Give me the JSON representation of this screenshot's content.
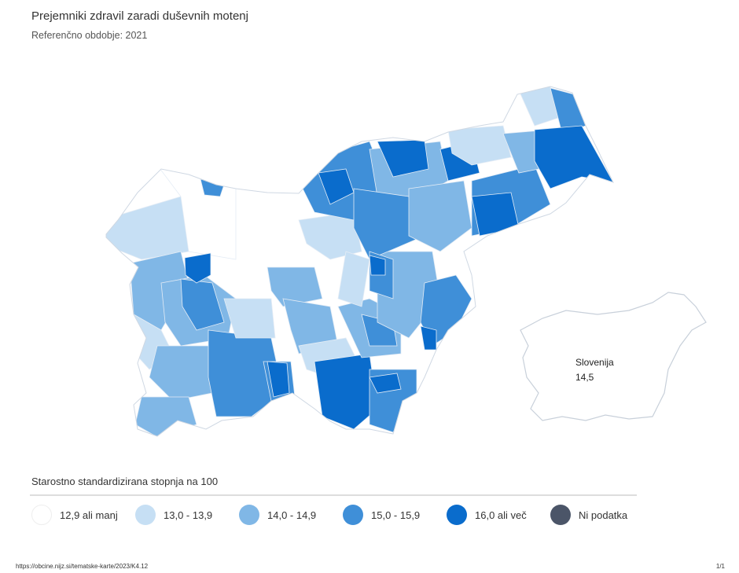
{
  "header": {
    "title": "Prejemniki zdravil zaradi duševnih motenj",
    "subtitle": "Referenčno obdobje: 2021"
  },
  "inset": {
    "name": "Slovenija",
    "value": "14,5"
  },
  "legend": {
    "title": "Starostno standardizirana stopnja na 100",
    "items": [
      {
        "label": "12,9 ali manj",
        "color": "#ffffff"
      },
      {
        "label": "13,0 - 13,9",
        "color": "#c6dff4"
      },
      {
        "label": "14,0 - 14,9",
        "color": "#80b7e6"
      },
      {
        "label": "15,0 - 15,9",
        "color": "#3f8fd8"
      },
      {
        "label": "16,0 ali več",
        "color": "#0a6ccc"
      },
      {
        "label": "Ni podatka",
        "color": "#4b5568"
      }
    ]
  },
  "footer": {
    "url": "https://obcine.nijz.si/tematske-karte/2023/K4.12",
    "page": "1/1"
  }
}
